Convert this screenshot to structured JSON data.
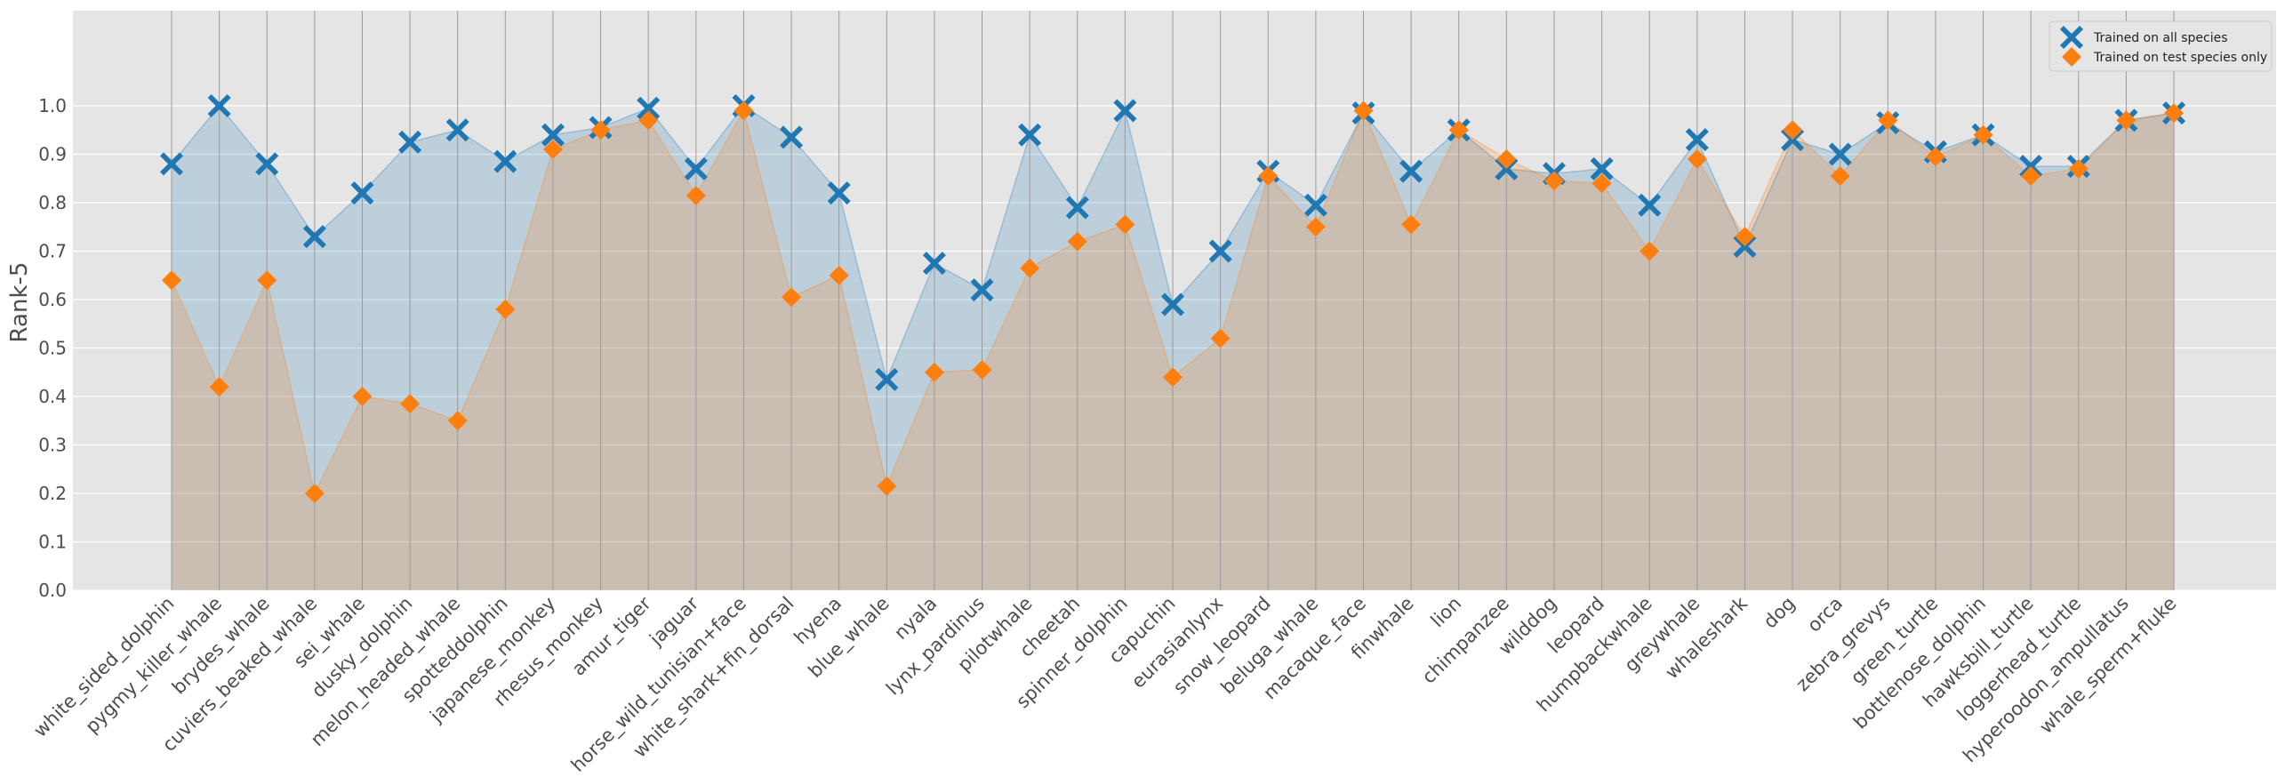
{
  "chart_data": {
    "type": "line",
    "title": "",
    "xlabel": "",
    "ylabel": "Rank-5",
    "ylim": [
      0.0,
      1.2
    ],
    "yticks": [
      "0.0",
      "0.1",
      "0.2",
      "0.3",
      "0.4",
      "0.5",
      "0.6",
      "0.7",
      "0.8",
      "0.9",
      "1.0"
    ],
    "legend_position": "top-right",
    "grid": true,
    "categories": [
      "white_sided_dolphin",
      "pygmy_killer_whale",
      "brydes_whale",
      "cuviers_beaked_whale",
      "sei_whale",
      "dusky_dolphin",
      "melon_headed_whale",
      "spotteddolphin",
      "japanese_monkey",
      "rhesus_monkey",
      "amur_tiger",
      "jaguar",
      "horse_wild_tunisian+face",
      "white_shark+fin_dorsal",
      "hyena",
      "blue_whale",
      "nyala",
      "lynx_pardinus",
      "pilotwhale",
      "cheetah",
      "spinner_dolphin",
      "capuchin",
      "eurasianlynx",
      "snow_leopard",
      "beluga_whale",
      "macaque_face",
      "finwhale",
      "lion",
      "chimpanzee",
      "wilddog",
      "leopard",
      "humpbackwhale",
      "greywhale",
      "whaleshark",
      "dog",
      "orca",
      "zebra_grevys",
      "green_turtle",
      "bottlenose_dolphin",
      "hawksbill_turtle",
      "loggerhead_turtle",
      "hyperoodon_ampullatus",
      "whale_sperm+fluke"
    ],
    "series": [
      {
        "name": "Trained on all species",
        "color": "#1f77b4",
        "marker": "X",
        "values": [
          0.88,
          1.0,
          0.88,
          0.73,
          0.82,
          0.925,
          0.95,
          0.885,
          0.94,
          0.955,
          0.995,
          0.87,
          1.0,
          0.935,
          0.82,
          0.435,
          0.675,
          0.62,
          0.94,
          0.79,
          0.99,
          0.59,
          0.7,
          0.865,
          0.795,
          0.985,
          0.865,
          0.95,
          0.87,
          0.86,
          0.87,
          0.795,
          0.93,
          0.71,
          0.93,
          0.9,
          0.965,
          0.905,
          0.94,
          0.875,
          0.875,
          0.97,
          0.985
        ]
      },
      {
        "name": "Trained on test species only",
        "color": "#ff7f0e",
        "marker": "D",
        "values": [
          0.64,
          0.42,
          0.64,
          0.2,
          0.4,
          0.385,
          0.35,
          0.58,
          0.91,
          0.95,
          0.97,
          0.815,
          0.99,
          0.605,
          0.65,
          0.215,
          0.45,
          0.455,
          0.665,
          0.72,
          0.755,
          0.44,
          0.52,
          0.855,
          0.75,
          0.99,
          0.755,
          0.95,
          0.89,
          0.845,
          0.84,
          0.7,
          0.89,
          0.73,
          0.95,
          0.855,
          0.97,
          0.895,
          0.94,
          0.855,
          0.87,
          0.97,
          0.985
        ]
      }
    ]
  }
}
